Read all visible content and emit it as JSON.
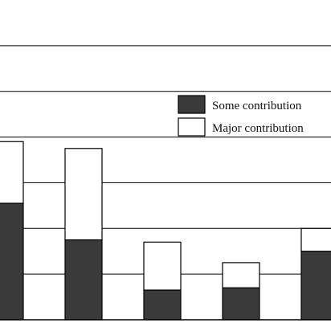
{
  "chart_data": {
    "type": "bar",
    "stacked": true,
    "categories": [
      "",
      "",
      "",
      "",
      ""
    ],
    "series": [
      {
        "name": "Some contribution",
        "color": "#3a3a3a",
        "values": [
          25.5,
          17.5,
          6.5,
          7,
          15
        ]
      },
      {
        "name": "Major contribution",
        "color": "#ffffff",
        "values": [
          13.5,
          20,
          10.5,
          5.5,
          5
        ]
      }
    ],
    "ylim": [
      0,
      70
    ],
    "grid": true,
    "legend_position": "top-right",
    "title": "",
    "xlabel": "",
    "ylabel": ""
  }
}
